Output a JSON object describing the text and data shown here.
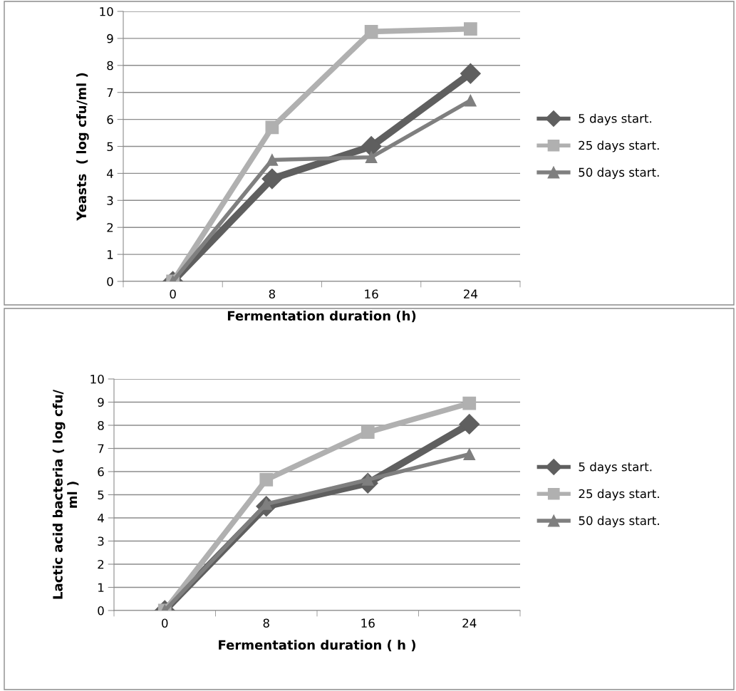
{
  "chart_data": [
    {
      "type": "line",
      "ylabel": "Yeasts  ( log cfu/ml )",
      "xlabel": "Fermentation duration (h)",
      "categories": [
        "0",
        "8",
        "16",
        "24"
      ],
      "ylim": [
        0,
        10
      ],
      "yticks": [
        0,
        1,
        2,
        3,
        4,
        5,
        6,
        7,
        8,
        9,
        10
      ],
      "grid": "y",
      "legend": "right",
      "series": [
        {
          "name": "5 days start.",
          "color": "#5f5f5f",
          "marker": "diamond",
          "values": [
            0,
            3.8,
            5.0,
            7.7
          ]
        },
        {
          "name": "25 days start.",
          "color": "#b0b0b0",
          "marker": "square",
          "values": [
            0,
            5.7,
            9.25,
            9.35
          ]
        },
        {
          "name": "50 days start.",
          "color": "#7f7f7f",
          "marker": "triangle",
          "values": [
            0,
            4.5,
            4.6,
            6.7
          ]
        }
      ]
    },
    {
      "type": "line",
      "ylabel": "Lactic acid bacteria ( log cfu/\nml )",
      "xlabel": "Fermentation duration ( h )",
      "categories": [
        "0",
        "8",
        "16",
        "24"
      ],
      "ylim": [
        0,
        10
      ],
      "yticks": [
        0,
        1,
        2,
        3,
        4,
        5,
        6,
        7,
        8,
        9,
        10
      ],
      "grid": "y",
      "legend": "right",
      "series": [
        {
          "name": "5 days start.",
          "color": "#5f5f5f",
          "marker": "diamond",
          "values": [
            0,
            4.5,
            5.5,
            8.05
          ]
        },
        {
          "name": "25 days start.",
          "color": "#b0b0b0",
          "marker": "square",
          "values": [
            0,
            5.65,
            7.7,
            8.95
          ]
        },
        {
          "name": "50 days start.",
          "color": "#7f7f7f",
          "marker": "triangle",
          "values": [
            0,
            4.6,
            5.65,
            6.75
          ]
        }
      ]
    }
  ]
}
